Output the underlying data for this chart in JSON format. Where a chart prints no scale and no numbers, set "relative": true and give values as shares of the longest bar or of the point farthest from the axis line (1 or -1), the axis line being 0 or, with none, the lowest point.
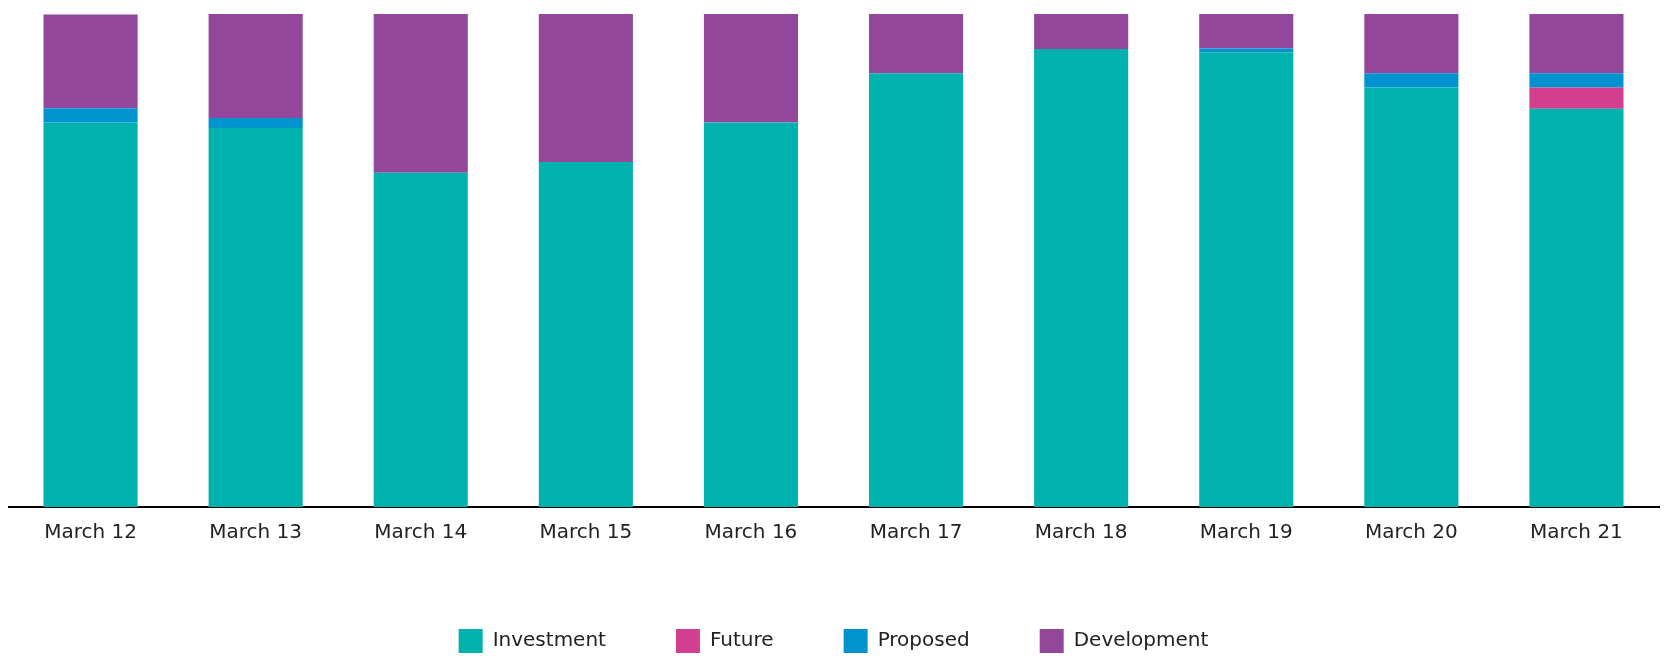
{
  "chart_data": {
    "type": "bar",
    "stacked": true,
    "relative": true,
    "legend": "bottom",
    "categories": [
      "March 12",
      "March 13",
      "March 14",
      "March 15",
      "March 16",
      "March 17",
      "March 18",
      "March 19",
      "March 20",
      "March 21"
    ],
    "series": [
      {
        "name": "Investment",
        "color": "#00b2ae",
        "values": [
          0.78,
          0.769,
          0.678,
          0.7,
          0.78,
          0.88,
          0.929,
          0.922,
          0.851,
          0.808
        ]
      },
      {
        "name": "Future",
        "color": "#d33f8f",
        "values": [
          0,
          0,
          0,
          0,
          0,
          0,
          0,
          0,
          0,
          0.043
        ]
      },
      {
        "name": "Proposed",
        "color": "#0093d0",
        "values": [
          0.029,
          0.02,
          0,
          0,
          0,
          0,
          0,
          0.008,
          0.029,
          0.029
        ]
      },
      {
        "name": "Development",
        "color": "#92479b",
        "values": [
          0.19,
          0.211,
          0.322,
          0.3,
          0.22,
          0.12,
          0.071,
          0.07,
          0.12,
          0.12
        ]
      }
    ]
  }
}
